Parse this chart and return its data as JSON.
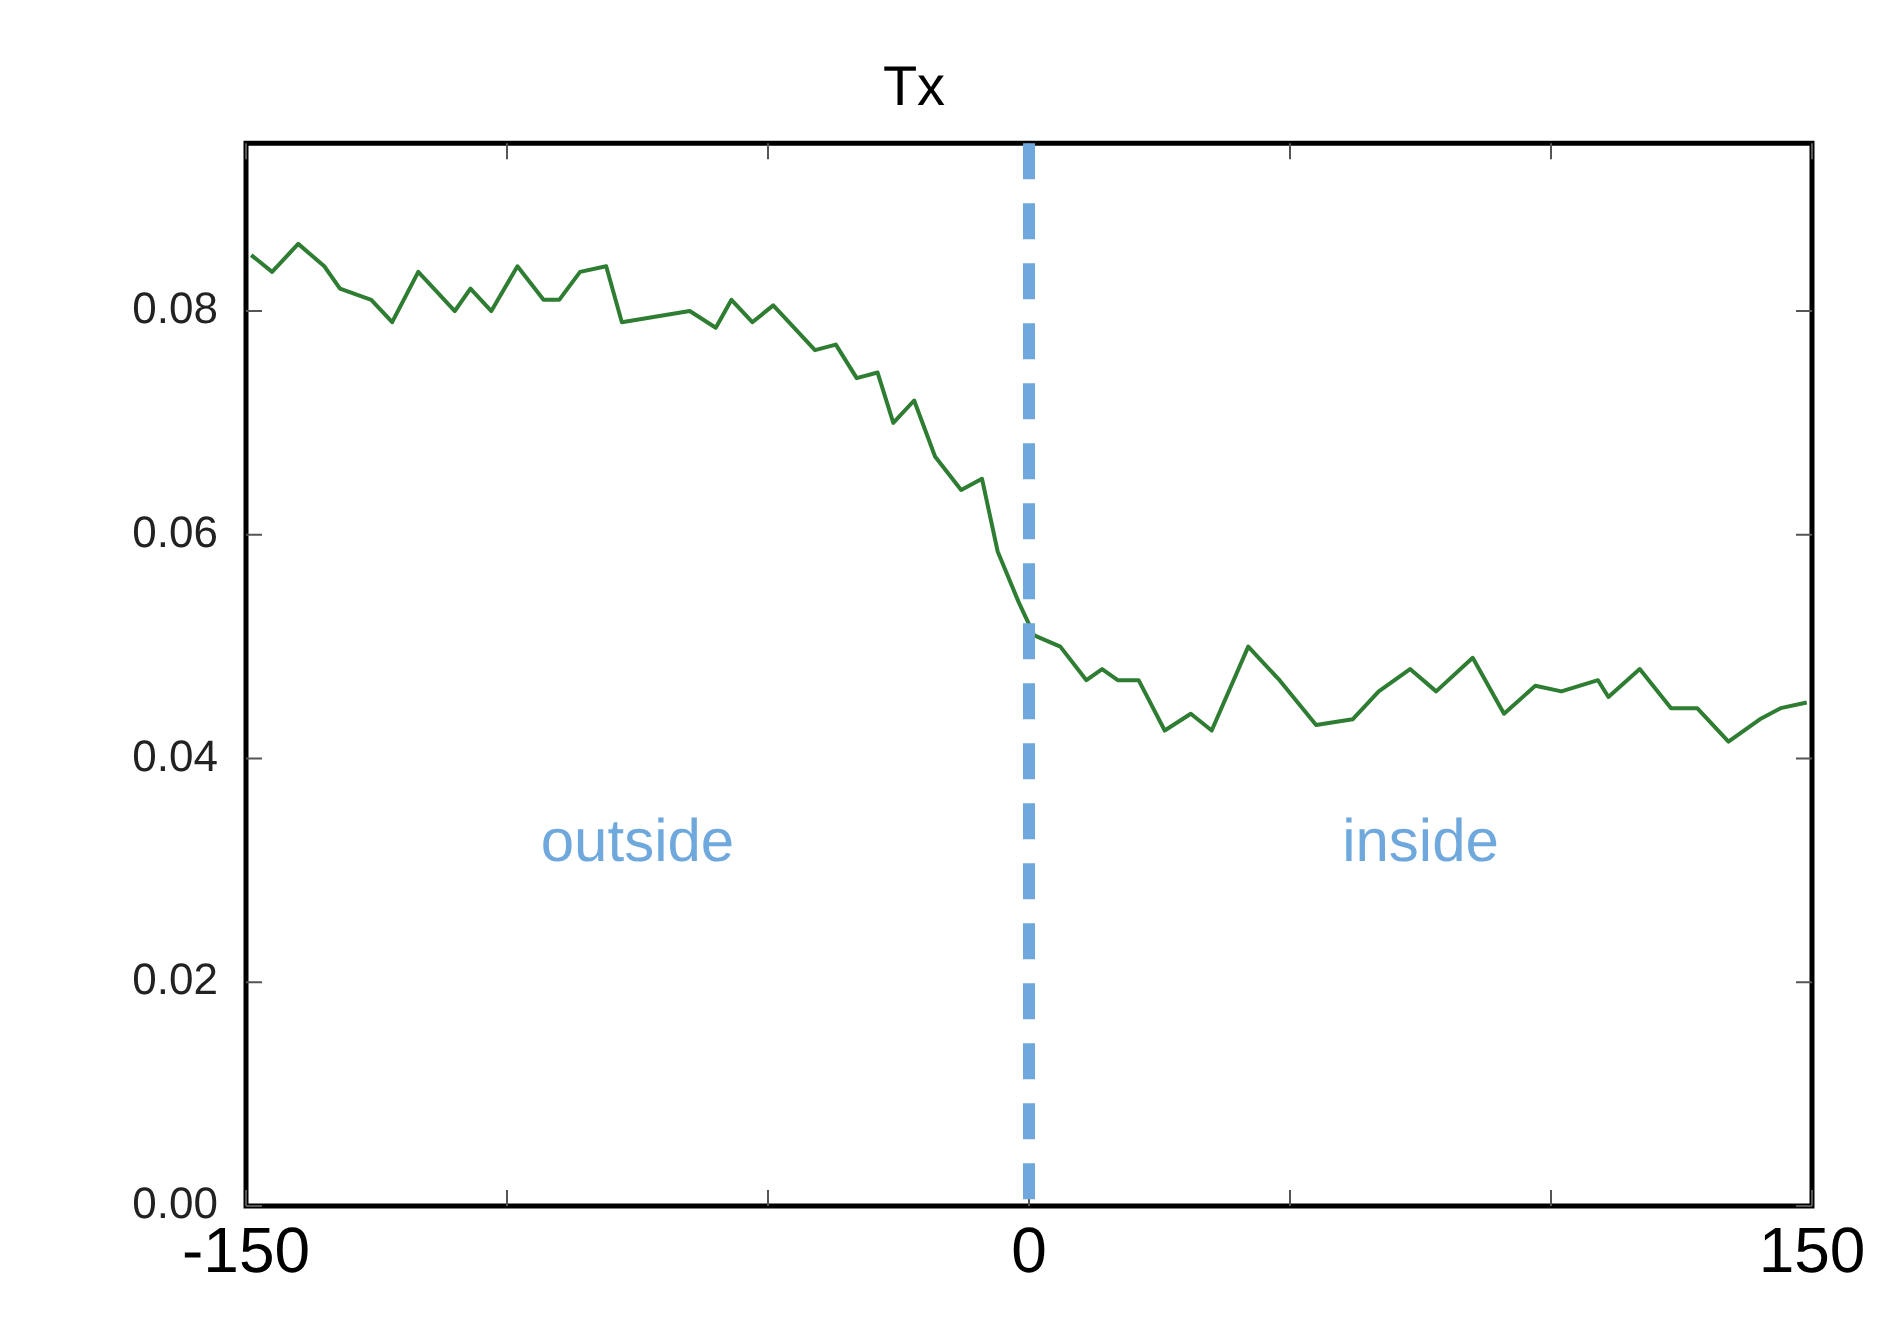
{
  "chart_data": {
    "type": "line",
    "title": "Tx",
    "x": [
      -149,
      -145,
      -140,
      -135,
      -132,
      -126,
      -122,
      -117,
      -114,
      -110,
      -107,
      -103,
      -98,
      -93,
      -90,
      -86,
      -81,
      -78,
      -65,
      -60,
      -57,
      -53,
      -49,
      -46,
      -41,
      -37,
      -33,
      -29,
      -26,
      -22,
      -18,
      -13,
      -9,
      -6,
      -2,
      -1,
      1,
      6,
      11,
      14,
      17,
      21,
      26,
      31,
      35,
      42,
      48,
      55,
      62,
      67,
      73,
      78,
      85,
      91,
      97,
      102,
      109,
      111,
      117,
      123,
      128,
      134,
      140,
      144,
      149
    ],
    "series": [
      {
        "color": "#2e7d32",
        "values": [
          0.085,
          0.0835,
          0.086,
          0.084,
          0.082,
          0.081,
          0.079,
          0.0835,
          0.082,
          0.08,
          0.082,
          0.08,
          0.084,
          0.081,
          0.081,
          0.0835,
          0.084,
          0.079,
          0.08,
          0.0785,
          0.081,
          0.079,
          0.0805,
          0.079,
          0.0765,
          0.077,
          0.074,
          0.0745,
          0.07,
          0.072,
          0.067,
          0.064,
          0.065,
          0.0585,
          0.054,
          0.053,
          0.051,
          0.05,
          0.047,
          0.048,
          0.047,
          0.047,
          0.0425,
          0.044,
          0.0425,
          0.05,
          0.047,
          0.043,
          0.0435,
          0.046,
          0.048,
          0.046,
          0.049,
          0.044,
          0.0465,
          0.046,
          0.047,
          0.0455,
          0.048,
          0.0445,
          0.0445,
          0.0415,
          0.0435,
          0.0445,
          0.045
        ]
      }
    ],
    "xlim": [
      -150,
      150
    ],
    "xticks": [
      -150,
      {
        "value": -100,
        "label": null
      },
      {
        "value": -50,
        "label": null
      },
      0,
      {
        "value": 50,
        "label": null
      },
      {
        "value": 100,
        "label": null
      },
      150
    ],
    "ylim": [
      0,
      0.095
    ],
    "yticks": [
      {
        "value": 0,
        "label": "0.00"
      },
      {
        "value": 0.02,
        "label": "0.02"
      },
      {
        "value": 0.04,
        "label": "0.04"
      },
      {
        "value": 0.06,
        "label": "0.06"
      },
      {
        "value": 0.08,
        "label": "0.08"
      }
    ],
    "ref_lines": [
      {
        "axis": "x",
        "value": 0,
        "color": "#6fa8dc",
        "line_style": "dashed"
      }
    ],
    "annotations": [
      "outside",
      "inside"
    ],
    "grid": false,
    "legend": false,
    "marker": "none",
    "line_style": "solid"
  }
}
